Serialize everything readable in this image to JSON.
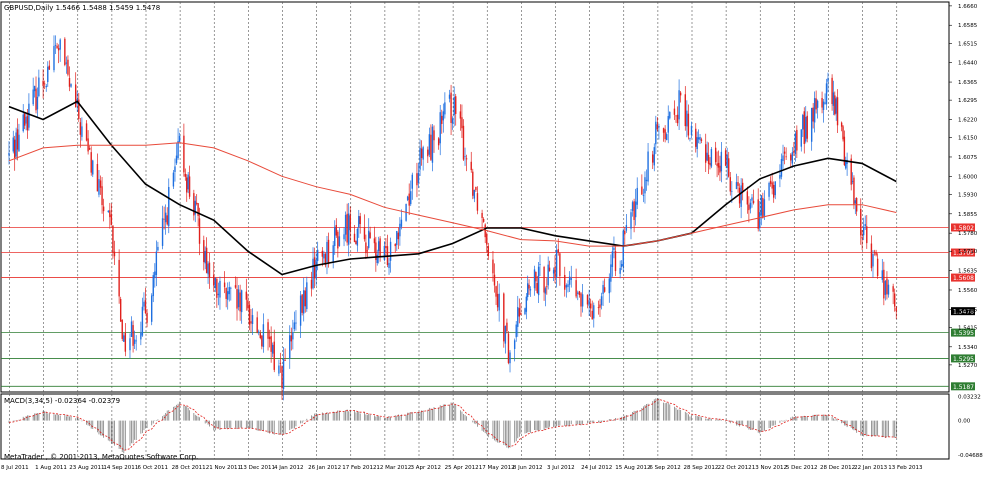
{
  "window": {
    "symbol_header": "GBPUSD,Daily  1.5466 1.5488 1.5459 1.5478",
    "macd_header": "MACD(3,34,5) -0.02364 -0.02379",
    "copyright": "MetaTrader , © 2001-2013, MetaQuotes Software Corp."
  },
  "price_axis": {
    "ticks": [
      "1.6660",
      "1.6585",
      "1.6515",
      "1.6440",
      "1.6365",
      "1.6295",
      "1.6220",
      "1.6150",
      "1.6075",
      "1.6000",
      "1.5930",
      "1.5855",
      "1.5780",
      "1.5710",
      "1.5635",
      "1.5560",
      "1.5485",
      "1.5415",
      "1.5340",
      "1.5270"
    ],
    "ylim": [
      1.5165,
      1.6675
    ]
  },
  "price_levels": [
    {
      "label": "1.5802",
      "value": 1.5802,
      "color": "#e8322e",
      "kind": "resistance"
    },
    {
      "label": "1.5705",
      "value": 1.5705,
      "color": "#e8322e",
      "kind": "resistance"
    },
    {
      "label": "1.5608",
      "value": 1.5608,
      "color": "#e8322e",
      "kind": "resistance"
    },
    {
      "label": "1.5478",
      "value": 1.5478,
      "color": "#000000",
      "kind": "current"
    },
    {
      "label": "1.5395",
      "value": 1.5395,
      "color": "#2e7d32",
      "kind": "support"
    },
    {
      "label": "1.5295",
      "value": 1.5295,
      "color": "#2e7d32",
      "kind": "support"
    },
    {
      "label": "1.5187",
      "value": 1.5187,
      "color": "#2e7d32",
      "kind": "support"
    }
  ],
  "macd_axis": {
    "ticks": [
      "0.03232",
      "0.00",
      "-0.04688"
    ],
    "ylim": [
      -0.052,
      0.036
    ]
  },
  "time_axis": {
    "labels": [
      "8 Jul 2011",
      "1 Aug 2011",
      "23 Aug 2011",
      "14 Sep 2011",
      "6 Oct 2011",
      "28 Oct 2011",
      "21 Nov 2011",
      "13 Dec 2011",
      "4 Jan 2012",
      "26 Jan 2012",
      "17 Feb 2012",
      "12 Mar 2012",
      "3 Apr 2012",
      "25 Apr 2012",
      "17 May 2012",
      "8 Jun 2012",
      "3 Jul 2012",
      "24 Jul 2012",
      "15 Aug 2012",
      "6 Sep 2012",
      "28 Sep 2012",
      "22 Oct 2012",
      "13 Nov 2012",
      "5 Dec 2012",
      "28 Dec 2012",
      "22 Jan 2013",
      "13 Feb 2013"
    ]
  },
  "colors": {
    "bull": "#1e6fe0",
    "bear": "#e0201c",
    "ma_fast": "#e84a3a",
    "ma_slow": "#000000",
    "macd_hist": "#808080",
    "macd_signal": "#e0201c",
    "grid": "#555555"
  },
  "chart_data": {
    "type": "candlestick",
    "symbol": "GBPUSD",
    "timeframe": "Daily",
    "last": {
      "open": 1.5466,
      "high": 1.5488,
      "low": 1.5459,
      "close": 1.5478
    },
    "anchors": [
      {
        "date": "8 Jul 2011",
        "close": 1.608
      },
      {
        "date": "1 Aug 2011",
        "close": 1.638
      },
      {
        "date": "11 Aug 2011",
        "close": 1.651
      },
      {
        "date": "23 Aug 2011",
        "close": 1.624
      },
      {
        "date": "14 Sep 2011",
        "close": 1.577
      },
      {
        "date": "22 Sep 2011",
        "close": 1.536
      },
      {
        "date": "6 Oct 2011",
        "close": 1.546
      },
      {
        "date": "28 Oct 2011",
        "close": 1.611
      },
      {
        "date": "21 Nov 2011",
        "close": 1.556
      },
      {
        "date": "13 Dec 2011",
        "close": 1.548
      },
      {
        "date": "4 Jan 2012",
        "close": 1.524
      },
      {
        "date": "26 Jan 2012",
        "close": 1.567
      },
      {
        "date": "17 Feb 2012",
        "close": 1.582
      },
      {
        "date": "12 Mar 2012",
        "close": 1.567
      },
      {
        "date": "3 Apr 2012",
        "close": 1.604
      },
      {
        "date": "25 Apr 2012",
        "close": 1.628
      },
      {
        "date": "17 May 2012",
        "close": 1.578
      },
      {
        "date": "1 Jun 2012",
        "close": 1.528
      },
      {
        "date": "8 Jun 2012",
        "close": 1.552
      },
      {
        "date": "3 Jul 2012",
        "close": 1.566
      },
      {
        "date": "24 Jul 2012",
        "close": 1.547
      },
      {
        "date": "15 Aug 2012",
        "close": 1.573
      },
      {
        "date": "6 Sep 2012",
        "close": 1.617
      },
      {
        "date": "21 Sep 2012",
        "close": 1.628
      },
      {
        "date": "28 Sep 2012",
        "close": 1.615
      },
      {
        "date": "22 Oct 2012",
        "close": 1.603
      },
      {
        "date": "13 Nov 2012",
        "close": 1.585
      },
      {
        "date": "5 Dec 2012",
        "close": 1.612
      },
      {
        "date": "28 Dec 2012",
        "close": 1.633
      },
      {
        "date": "2 Jan 2013",
        "close": 1.627
      },
      {
        "date": "22 Jan 2013",
        "close": 1.579
      },
      {
        "date": "13 Feb 2013",
        "close": 1.5478
      }
    ],
    "moving_averages": [
      {
        "name": "slow MA",
        "color": "#000000",
        "points": [
          [
            "8 Jul 2011",
            1.627
          ],
          [
            "1 Aug 2011",
            1.622
          ],
          [
            "23 Aug 2011",
            1.629
          ],
          [
            "14 Sep 2011",
            1.612
          ],
          [
            "6 Oct 2011",
            1.597
          ],
          [
            "28 Oct 2011",
            1.589
          ],
          [
            "21 Nov 2011",
            1.583
          ],
          [
            "13 Dec 2011",
            1.571
          ],
          [
            "4 Jan 2012",
            1.562
          ],
          [
            "26 Jan 2012",
            1.5655
          ],
          [
            "17 Feb 2012",
            1.568
          ],
          [
            "12 Mar 2012",
            1.569
          ],
          [
            "3 Apr 2012",
            1.57
          ],
          [
            "25 Apr 2012",
            1.574
          ],
          [
            "17 May 2012",
            1.58
          ],
          [
            "8 Jun 2012",
            1.58
          ],
          [
            "3 Jul 2012",
            1.577
          ],
          [
            "24 Jul 2012",
            1.575
          ],
          [
            "15 Aug 2012",
            1.573
          ],
          [
            "6 Sep 2012",
            1.575
          ],
          [
            "28 Sep 2012",
            1.578
          ],
          [
            "22 Oct 2012",
            1.589
          ],
          [
            "13 Nov 2012",
            1.599
          ],
          [
            "5 Dec 2012",
            1.604
          ],
          [
            "28 Dec 2012",
            1.607
          ],
          [
            "22 Jan 2013",
            1.605
          ],
          [
            "13 Feb 2013",
            1.598
          ]
        ]
      },
      {
        "name": "fast MA",
        "color": "#e84a3a",
        "points": [
          [
            "8 Jul 2011",
            1.606
          ],
          [
            "1 Aug 2011",
            1.611
          ],
          [
            "23 Aug 2011",
            1.612
          ],
          [
            "14 Sep 2011",
            1.612
          ],
          [
            "6 Oct 2011",
            1.612
          ],
          [
            "28 Oct 2011",
            1.613
          ],
          [
            "21 Nov 2011",
            1.611
          ],
          [
            "13 Dec 2011",
            1.606
          ],
          [
            "4 Jan 2012",
            1.6
          ],
          [
            "26 Jan 2012",
            1.596
          ],
          [
            "17 Feb 2012",
            1.593
          ],
          [
            "12 Mar 2012",
            1.588
          ],
          [
            "3 Apr 2012",
            1.585
          ],
          [
            "25 Apr 2012",
            1.582
          ],
          [
            "17 May 2012",
            1.579
          ],
          [
            "8 Jun 2012",
            1.5755
          ],
          [
            "3 Jul 2012",
            1.575
          ],
          [
            "24 Jul 2012",
            1.573
          ],
          [
            "15 Aug 2012",
            1.573
          ],
          [
            "6 Sep 2012",
            1.575
          ],
          [
            "28 Sep 2012",
            1.578
          ],
          [
            "22 Oct 2012",
            1.581
          ],
          [
            "13 Nov 2012",
            1.584
          ],
          [
            "5 Dec 2012",
            1.587
          ],
          [
            "28 Dec 2012",
            1.589
          ],
          [
            "22 Jan 2013",
            1.589
          ],
          [
            "13 Feb 2013",
            1.586
          ]
        ]
      }
    ],
    "macd": {
      "params": "3,34,5",
      "main": -0.02364,
      "signal": -0.02379,
      "histogram_anchors": [
        {
          "date": "8 Jul 2011",
          "value": -0.002
        },
        {
          "date": "1 Aug 2011",
          "value": 0.012
        },
        {
          "date": "23 Aug 2011",
          "value": 0.004
        },
        {
          "date": "14 Sep 2011",
          "value": -0.03
        },
        {
          "date": "22 Sep 2011",
          "value": -0.043
        },
        {
          "date": "6 Oct 2011",
          "value": -0.012
        },
        {
          "date": "28 Oct 2011",
          "value": 0.026
        },
        {
          "date": "21 Nov 2011",
          "value": -0.012
        },
        {
          "date": "13 Dec 2011",
          "value": -0.01
        },
        {
          "date": "4 Jan 2012",
          "value": -0.02
        },
        {
          "date": "26 Jan 2012",
          "value": 0.01
        },
        {
          "date": "17 Feb 2012",
          "value": 0.014
        },
        {
          "date": "12 Mar 2012",
          "value": 0.004
        },
        {
          "date": "3 Apr 2012",
          "value": 0.012
        },
        {
          "date": "25 Apr 2012",
          "value": 0.024
        },
        {
          "date": "17 May 2012",
          "value": -0.02
        },
        {
          "date": "1 Jun 2012",
          "value": -0.038
        },
        {
          "date": "8 Jun 2012",
          "value": -0.018
        },
        {
          "date": "3 Jul 2012",
          "value": -0.008
        },
        {
          "date": "24 Jul 2012",
          "value": -0.004
        },
        {
          "date": "15 Aug 2012",
          "value": 0.004
        },
        {
          "date": "6 Sep 2012",
          "value": 0.03
        },
        {
          "date": "28 Sep 2012",
          "value": 0.006
        },
        {
          "date": "22 Oct 2012",
          "value": 0.0
        },
        {
          "date": "13 Nov 2012",
          "value": -0.016
        },
        {
          "date": "5 Dec 2012",
          "value": 0.006
        },
        {
          "date": "28 Dec 2012",
          "value": 0.008
        },
        {
          "date": "22 Jan 2013",
          "value": -0.02
        },
        {
          "date": "13 Feb 2013",
          "value": -0.024
        }
      ]
    }
  }
}
